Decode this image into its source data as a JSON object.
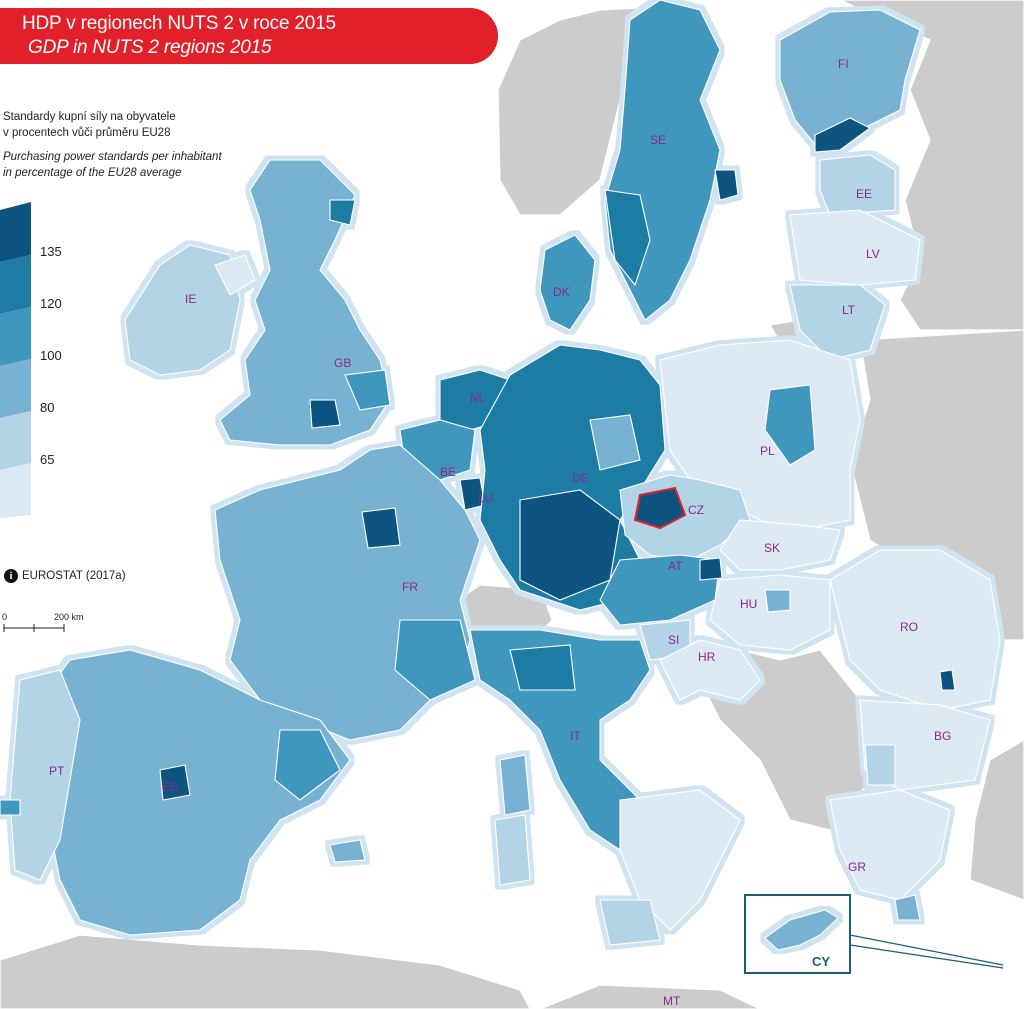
{
  "title": {
    "cz": "HDP v regionech NUTS 2 v roce 2015",
    "en": "GDP in NUTS 2 regions 2015"
  },
  "legend": {
    "desc_cz_line1": "Standardy kupní síly na obyvatele",
    "desc_cz_line2": "v procentech vůči průměru EU28",
    "desc_en_line1": "Purchasing power standards per inhabitant",
    "desc_en_line2": "in percentage of the EU28 average",
    "classes": [
      {
        "label": "135",
        "color": "#0d5580"
      },
      {
        "label": "120",
        "color": "#1f7ba3"
      },
      {
        "label": "100",
        "color": "#3f97bd"
      },
      {
        "label": "80",
        "color": "#78b2d3"
      },
      {
        "label": "65",
        "color": "#b3d3e7"
      },
      {
        "label": "",
        "color": "#dce9f3"
      }
    ]
  },
  "source": "EUROSTAT (2017a)",
  "scalebar": {
    "start": "0",
    "end": "200 km"
  },
  "colors": {
    "sea": "#ffffff",
    "coast_glow": "#cfe3f0",
    "non_eu": "#cccccc",
    "border": "#ffffff",
    "highlight": "#e2202a",
    "label": "#8a2a8c",
    "banner": "#e2202a"
  },
  "countries": [
    {
      "code": "FI",
      "level": 4
    },
    {
      "code": "SE",
      "level": 3
    },
    {
      "code": "EE",
      "level": 5
    },
    {
      "code": "LV",
      "level": 6
    },
    {
      "code": "LT",
      "level": 5
    },
    {
      "code": "IE",
      "level": 5
    },
    {
      "code": "GB",
      "level": 4
    },
    {
      "code": "DK",
      "level": 3
    },
    {
      "code": "NL",
      "level": 2
    },
    {
      "code": "BE",
      "level": 3
    },
    {
      "code": "LU",
      "level": 1
    },
    {
      "code": "DE",
      "level": 2
    },
    {
      "code": "PL",
      "level": 6
    },
    {
      "code": "CZ",
      "level": 5
    },
    {
      "code": "SK",
      "level": 6
    },
    {
      "code": "AT",
      "level": 2
    },
    {
      "code": "HU",
      "level": 6
    },
    {
      "code": "SI",
      "level": 5
    },
    {
      "code": "HR",
      "level": 6
    },
    {
      "code": "RO",
      "level": 6
    },
    {
      "code": "BG",
      "level": 6
    },
    {
      "code": "FR",
      "level": 4
    },
    {
      "code": "IT",
      "level": 4
    },
    {
      "code": "ES",
      "level": 4
    },
    {
      "code": "PT",
      "level": 5
    },
    {
      "code": "GR",
      "level": 6
    },
    {
      "code": "CY",
      "level": 4
    },
    {
      "code": "MT",
      "level": 5
    }
  ]
}
